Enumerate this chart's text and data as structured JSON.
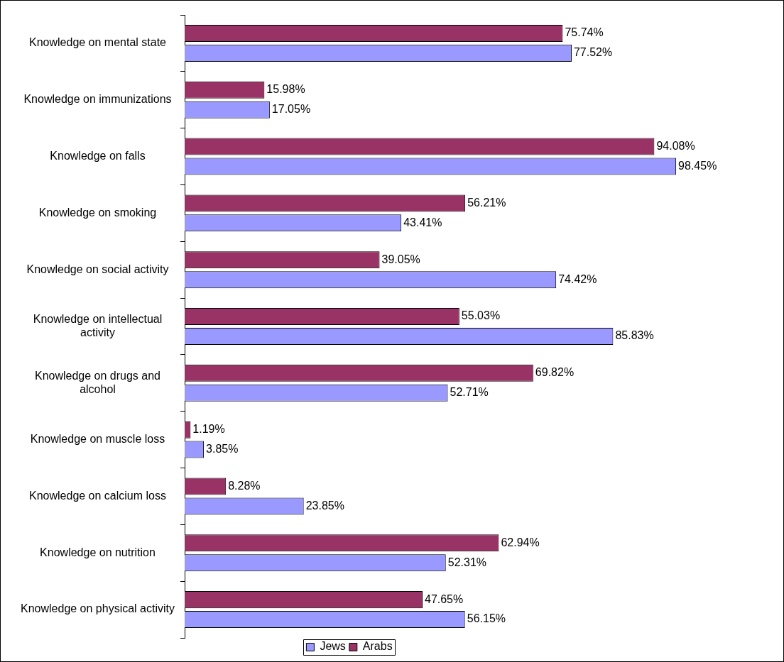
{
  "chart_data": {
    "type": "bar",
    "orientation": "horizontal",
    "categories": [
      "Knowledge on mental state",
      "Knowledge on immunizations",
      "Knowledge on falls",
      "Knowledge on smoking",
      "Knowledge on social activity",
      "Knowledge on intellectual activity",
      "Knowledge on drugs and alcohol",
      "Knowledge on muscle loss",
      "Knowledge on calcium loss",
      "Knowledge on nutrition",
      "Knowledge on physical activity"
    ],
    "series": [
      {
        "name": "Jews",
        "color": "#9999ff",
        "values": [
          77.52,
          17.05,
          98.45,
          43.41,
          74.42,
          85.83,
          52.71,
          3.85,
          23.85,
          52.31,
          56.15
        ],
        "value_labels": [
          "77.52%",
          "17.05%",
          "98.45%",
          "43.41%",
          "74.42%",
          "85.83%",
          "52.71%",
          "3.85%",
          "23.85%",
          "52.31%",
          "56.15%"
        ]
      },
      {
        "name": "Arabs",
        "color": "#993366",
        "values": [
          75.74,
          15.98,
          94.08,
          56.21,
          39.05,
          55.03,
          69.82,
          1.19,
          8.28,
          62.94,
          47.65
        ],
        "value_labels": [
          "75.74%",
          "15.98%",
          "94.08%",
          "56.21%",
          "39.05%",
          "55.03%",
          "69.82%",
          "1.19%",
          "8.28%",
          "62.94%",
          "47.65%"
        ]
      }
    ],
    "legend": "bottom"
  }
}
